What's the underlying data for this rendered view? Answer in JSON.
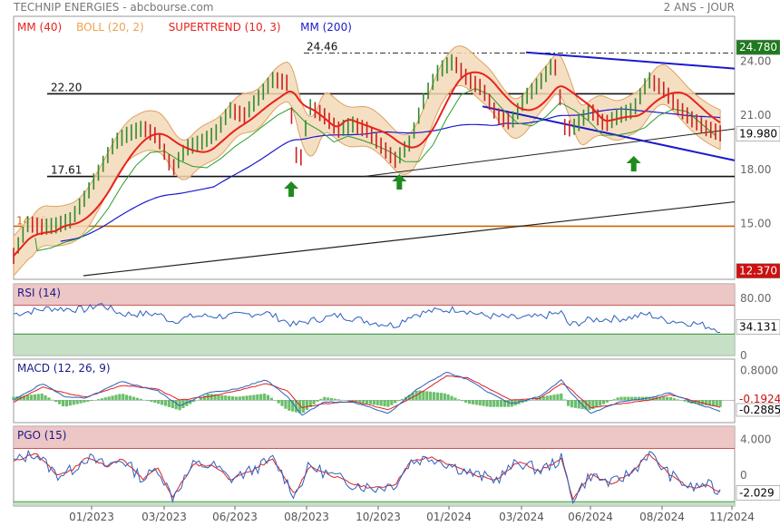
{
  "header": {
    "title": "TECHNIP ENERGIES - abcbourse.com",
    "period": "2 ANS - JOUR"
  },
  "chart_data": {
    "type": "candlestick",
    "x_labels": [
      "01/2023",
      "03/2023",
      "06/2023",
      "08/2023",
      "10/2023",
      "01/2024",
      "03/2024",
      "06/2024",
      "08/2024",
      "11/2024"
    ],
    "price_panel": {
      "legend": [
        {
          "label": "MM (40)",
          "color": "#e8231a"
        },
        {
          "label": "BOLL (20, 2)",
          "color": "#f0a050"
        },
        {
          "label": "SUPERTREND (10, 3)",
          "color": "#e8231a"
        },
        {
          "label": "MM (200)",
          "color": "#1a1acd"
        }
      ],
      "y_range": [
        11.9,
        26.5
      ],
      "y_ticks": [
        {
          "value": 24.0,
          "label": "24.00"
        },
        {
          "value": 21.0,
          "label": "21.00"
        },
        {
          "value": 18.0,
          "label": "18.00"
        },
        {
          "value": 15.0,
          "label": "15.00"
        }
      ],
      "levels": [
        {
          "value": 24.46,
          "label": "24.46",
          "style": "dashdot"
        },
        {
          "value": 22.2,
          "label": "22.20",
          "style": "solid"
        },
        {
          "value": 17.61,
          "label": "17.61",
          "style": "solid"
        },
        {
          "value": 14.85,
          "label": "14.85",
          "style": "orange"
        }
      ],
      "tags": [
        {
          "value": 24.78,
          "label": "24.780",
          "bg": "#1f7a1f",
          "fg": "#ffffff"
        },
        {
          "value": 19.98,
          "label": "19.980",
          "bg": "#ffffff",
          "fg": "#000000"
        },
        {
          "value": 12.37,
          "label": "12.370",
          "bg": "#cc1111",
          "fg": "#ffffff"
        }
      ],
      "arrows_x_index": [
        0.385,
        0.535,
        0.86
      ],
      "price_path": [
        [
          0,
          13.2
        ],
        [
          0.02,
          15.0
        ],
        [
          0.04,
          14.8
        ],
        [
          0.06,
          14.9
        ],
        [
          0.08,
          15.2
        ],
        [
          0.1,
          16.5
        ],
        [
          0.12,
          18.0
        ],
        [
          0.14,
          19.5
        ],
        [
          0.16,
          20.0
        ],
        [
          0.18,
          20.3
        ],
        [
          0.2,
          19.8
        ],
        [
          0.22,
          18.0
        ],
        [
          0.24,
          19.2
        ],
        [
          0.26,
          19.5
        ],
        [
          0.28,
          20.0
        ],
        [
          0.3,
          21.3
        ],
        [
          0.32,
          21.0
        ],
        [
          0.34,
          22.0
        ],
        [
          0.36,
          23.0
        ],
        [
          0.38,
          22.8
        ],
        [
          0.395,
          17.8
        ],
        [
          0.41,
          21.5
        ],
        [
          0.43,
          21.0
        ],
        [
          0.45,
          20.2
        ],
        [
          0.47,
          20.5
        ],
        [
          0.49,
          20.2
        ],
        [
          0.51,
          19.3
        ],
        [
          0.53,
          18.5
        ],
        [
          0.55,
          19.5
        ],
        [
          0.57,
          22.0
        ],
        [
          0.59,
          23.5
        ],
        [
          0.61,
          24.0
        ],
        [
          0.63,
          23.0
        ],
        [
          0.65,
          22.5
        ],
        [
          0.67,
          21.0
        ],
        [
          0.69,
          20.6
        ],
        [
          0.71,
          22.0
        ],
        [
          0.73,
          22.8
        ],
        [
          0.75,
          24.0
        ],
        [
          0.765,
          20.2
        ],
        [
          0.78,
          20.4
        ],
        [
          0.8,
          21.3
        ],
        [
          0.82,
          20.5
        ],
        [
          0.84,
          21.0
        ],
        [
          0.86,
          21.3
        ],
        [
          0.88,
          23.0
        ],
        [
          0.9,
          22.5
        ],
        [
          0.92,
          21.5
        ],
        [
          0.94,
          20.8
        ],
        [
          0.96,
          20.3
        ],
        [
          0.98,
          20.0
        ]
      ]
    },
    "rsi_panel": {
      "label": "RSI (14)",
      "y_range": [
        0,
        100
      ],
      "y_ticks": [
        {
          "value": 80,
          "label": "80.00"
        },
        {
          "value": 0,
          "label": "0"
        }
      ],
      "bands": [
        30,
        70
      ],
      "last": "34.131",
      "path": [
        [
          0,
          58
        ],
        [
          0.05,
          66
        ],
        [
          0.1,
          64
        ],
        [
          0.12,
          72
        ],
        [
          0.15,
          58
        ],
        [
          0.2,
          58
        ],
        [
          0.22,
          48
        ],
        [
          0.25,
          55
        ],
        [
          0.3,
          55
        ],
        [
          0.35,
          60
        ],
        [
          0.39,
          42
        ],
        [
          0.4,
          46
        ],
        [
          0.45,
          56
        ],
        [
          0.5,
          46
        ],
        [
          0.53,
          42
        ],
        [
          0.55,
          56
        ],
        [
          0.58,
          62
        ],
        [
          0.62,
          65
        ],
        [
          0.65,
          56
        ],
        [
          0.7,
          52
        ],
        [
          0.73,
          54
        ],
        [
          0.76,
          60
        ],
        [
          0.77,
          42
        ],
        [
          0.8,
          50
        ],
        [
          0.85,
          52
        ],
        [
          0.88,
          58
        ],
        [
          0.9,
          50
        ],
        [
          0.95,
          44
        ],
        [
          0.98,
          36
        ]
      ]
    },
    "macd_panel": {
      "label": "MACD (12, 26, 9)",
      "y_range": [
        -0.6,
        1.1
      ],
      "y_ticks": [
        {
          "value": 0.8,
          "label": "0.8000"
        },
        {
          "value": 0,
          "label": "0"
        }
      ],
      "last_signal": "-0.1924",
      "last_macd": "-0.2885",
      "macd_path": [
        [
          0,
          0.0
        ],
        [
          0.04,
          0.45
        ],
        [
          0.07,
          0.1
        ],
        [
          0.1,
          0.05
        ],
        [
          0.15,
          0.5
        ],
        [
          0.2,
          0.25
        ],
        [
          0.23,
          -0.15
        ],
        [
          0.27,
          0.2
        ],
        [
          0.31,
          0.3
        ],
        [
          0.35,
          0.55
        ],
        [
          0.38,
          0.1
        ],
        [
          0.4,
          -0.4
        ],
        [
          0.43,
          -0.05
        ],
        [
          0.47,
          -0.05
        ],
        [
          0.52,
          -0.35
        ],
        [
          0.56,
          0.3
        ],
        [
          0.6,
          0.75
        ],
        [
          0.63,
          0.55
        ],
        [
          0.66,
          0.2
        ],
        [
          0.69,
          -0.1
        ],
        [
          0.73,
          0.1
        ],
        [
          0.76,
          0.55
        ],
        [
          0.77,
          0.25
        ],
        [
          0.8,
          -0.35
        ],
        [
          0.84,
          -0.05
        ],
        [
          0.88,
          0.05
        ],
        [
          0.91,
          0.2
        ],
        [
          0.94,
          -0.05
        ],
        [
          0.98,
          -0.29
        ]
      ],
      "signal_path": [
        [
          0,
          -0.05
        ],
        [
          0.04,
          0.35
        ],
        [
          0.07,
          0.2
        ],
        [
          0.1,
          0.08
        ],
        [
          0.15,
          0.4
        ],
        [
          0.2,
          0.3
        ],
        [
          0.23,
          0.0
        ],
        [
          0.27,
          0.1
        ],
        [
          0.31,
          0.25
        ],
        [
          0.35,
          0.45
        ],
        [
          0.38,
          0.25
        ],
        [
          0.4,
          -0.2
        ],
        [
          0.43,
          -0.1
        ],
        [
          0.47,
          -0.03
        ],
        [
          0.52,
          -0.25
        ],
        [
          0.56,
          0.15
        ],
        [
          0.6,
          0.65
        ],
        [
          0.63,
          0.6
        ],
        [
          0.66,
          0.3
        ],
        [
          0.69,
          0.0
        ],
        [
          0.73,
          0.05
        ],
        [
          0.76,
          0.45
        ],
        [
          0.77,
          0.35
        ],
        [
          0.8,
          -0.2
        ],
        [
          0.84,
          -0.1
        ],
        [
          0.88,
          0.0
        ],
        [
          0.91,
          0.15
        ],
        [
          0.94,
          0.0
        ],
        [
          0.98,
          -0.19
        ]
      ]
    },
    "pgo_panel": {
      "label": "PGO (15)",
      "y_range": [
        -3.5,
        5.5
      ],
      "y_ticks": [
        {
          "value": 4.0,
          "label": "4.000"
        },
        {
          "value": 0,
          "label": "0"
        }
      ],
      "bands": [
        -3,
        3
      ],
      "last": "-2.029",
      "path": [
        [
          0,
          1.5
        ],
        [
          0.03,
          2.5
        ],
        [
          0.06,
          0.0
        ],
        [
          0.08,
          0.5
        ],
        [
          0.1,
          2.0
        ],
        [
          0.13,
          1.0
        ],
        [
          0.15,
          1.8
        ],
        [
          0.18,
          -0.5
        ],
        [
          0.2,
          0.8
        ],
        [
          0.22,
          -2.5
        ],
        [
          0.25,
          1.2
        ],
        [
          0.28,
          1.0
        ],
        [
          0.3,
          -0.5
        ],
        [
          0.33,
          0.5
        ],
        [
          0.36,
          1.8
        ],
        [
          0.39,
          -2.3
        ],
        [
          0.41,
          1.0
        ],
        [
          0.44,
          0.0
        ],
        [
          0.47,
          -1.0
        ],
        [
          0.5,
          -1.5
        ],
        [
          0.53,
          -1.0
        ],
        [
          0.55,
          1.5
        ],
        [
          0.58,
          2.0
        ],
        [
          0.61,
          1.0
        ],
        [
          0.64,
          0.0
        ],
        [
          0.67,
          -0.5
        ],
        [
          0.7,
          1.5
        ],
        [
          0.73,
          0.5
        ],
        [
          0.76,
          1.8
        ],
        [
          0.775,
          -2.7
        ],
        [
          0.8,
          0.0
        ],
        [
          0.83,
          -1.0
        ],
        [
          0.86,
          0.5
        ],
        [
          0.88,
          2.5
        ],
        [
          0.91,
          0.0
        ],
        [
          0.94,
          -1.5
        ],
        [
          0.96,
          -1.0
        ],
        [
          0.98,
          -2.0
        ]
      ]
    }
  }
}
